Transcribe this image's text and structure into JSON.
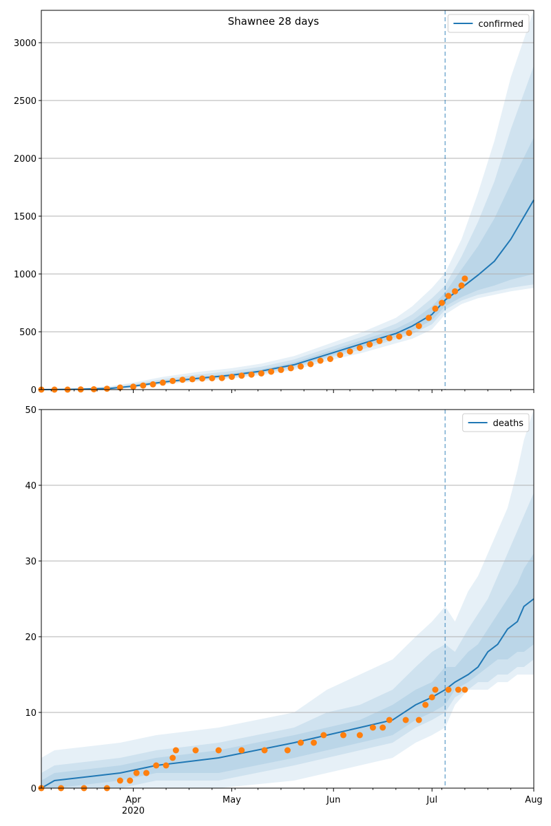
{
  "figure": {
    "title": "Shawnee 28 days"
  },
  "colors": {
    "line": "#1f77b4",
    "band": "#1f77b4",
    "points": "#ff7f0e",
    "vline": "#1f77b4",
    "grid": "#b0b0b0",
    "axis": "#000000"
  },
  "chart_data": [
    {
      "type": "line",
      "legend": [
        "confirmed"
      ],
      "legend_position": "upper right",
      "grid": "horizontal",
      "ylim": [
        0,
        3280
      ],
      "yticks": [
        0,
        500,
        1000,
        1500,
        2000,
        2500,
        3000
      ],
      "xlim": [
        "2020-03-04",
        "2020-08-01"
      ],
      "xtick_dates": [
        "2020-04-01",
        "2020-05-01",
        "2020-06-01",
        "2020-07-01",
        "2020-08-01"
      ],
      "xtick_labels": [
        "",
        "",
        "",
        "",
        ""
      ],
      "xtick_year_label": "",
      "forecast_start": "2020-07-05",
      "model_dates": [
        "2020-03-04",
        "2020-03-15",
        "2020-03-25",
        "2020-04-01",
        "2020-04-10",
        "2020-04-20",
        "2020-05-01",
        "2020-05-10",
        "2020-05-20",
        "2020-06-01",
        "2020-06-10",
        "2020-06-20",
        "2020-06-25",
        "2020-07-01",
        "2020-07-05",
        "2020-07-10",
        "2020-07-15",
        "2020-07-20",
        "2020-07-25",
        "2020-08-01"
      ],
      "model_median": [
        0,
        3,
        10,
        30,
        65,
        95,
        125,
        160,
        215,
        320,
        400,
        485,
        550,
        650,
        775,
        880,
        990,
        1110,
        1300,
        1640
      ],
      "bands": [
        {
          "lower": [
            0,
            0,
            3,
            15,
            45,
            70,
            95,
            125,
            170,
            260,
            320,
            400,
            440,
            520,
            650,
            740,
            790,
            820,
            850,
            880
          ],
          "upper": [
            0,
            12,
            30,
            60,
            110,
            150,
            185,
            225,
            290,
            410,
            500,
            620,
            720,
            880,
            1010,
            1300,
            1700,
            2150,
            2700,
            3280
          ]
        },
        {
          "lower": [
            0,
            0,
            5,
            20,
            52,
            80,
            105,
            138,
            187,
            285,
            350,
            435,
            480,
            565,
            690,
            770,
            820,
            850,
            880,
            910
          ],
          "upper": [
            0,
            8,
            22,
            48,
            90,
            128,
            160,
            198,
            260,
            375,
            460,
            570,
            650,
            790,
            900,
            1150,
            1450,
            1800,
            2250,
            2800
          ]
        },
        {
          "lower": [
            0,
            0,
            7,
            25,
            58,
            86,
            113,
            147,
            200,
            300,
            372,
            455,
            510,
            600,
            720,
            800,
            860,
            900,
            950,
            1000
          ],
          "upper": [
            0,
            5,
            15,
            38,
            75,
            108,
            140,
            175,
            235,
            345,
            430,
            525,
            595,
            720,
            840,
            1040,
            1240,
            1480,
            1780,
            2180
          ]
        }
      ],
      "observed": [
        {
          "date": "2020-03-04",
          "value": 0
        },
        {
          "date": "2020-03-08",
          "value": 0
        },
        {
          "date": "2020-03-12",
          "value": 0
        },
        {
          "date": "2020-03-16",
          "value": 1
        },
        {
          "date": "2020-03-20",
          "value": 3
        },
        {
          "date": "2020-03-24",
          "value": 8
        },
        {
          "date": "2020-03-28",
          "value": 18
        },
        {
          "date": "2020-04-01",
          "value": 25
        },
        {
          "date": "2020-04-04",
          "value": 35
        },
        {
          "date": "2020-04-07",
          "value": 45
        },
        {
          "date": "2020-04-10",
          "value": 60
        },
        {
          "date": "2020-04-13",
          "value": 75
        },
        {
          "date": "2020-04-16",
          "value": 85
        },
        {
          "date": "2020-04-19",
          "value": 90
        },
        {
          "date": "2020-04-22",
          "value": 95
        },
        {
          "date": "2020-04-25",
          "value": 98
        },
        {
          "date": "2020-04-28",
          "value": 100
        },
        {
          "date": "2020-05-01",
          "value": 110
        },
        {
          "date": "2020-05-04",
          "value": 120
        },
        {
          "date": "2020-05-07",
          "value": 130
        },
        {
          "date": "2020-05-10",
          "value": 140
        },
        {
          "date": "2020-05-13",
          "value": 155
        },
        {
          "date": "2020-05-16",
          "value": 170
        },
        {
          "date": "2020-05-19",
          "value": 185
        },
        {
          "date": "2020-05-22",
          "value": 200
        },
        {
          "date": "2020-05-25",
          "value": 220
        },
        {
          "date": "2020-05-28",
          "value": 250
        },
        {
          "date": "2020-05-31",
          "value": 265
        },
        {
          "date": "2020-06-03",
          "value": 300
        },
        {
          "date": "2020-06-06",
          "value": 330
        },
        {
          "date": "2020-06-09",
          "value": 360
        },
        {
          "date": "2020-06-12",
          "value": 390
        },
        {
          "date": "2020-06-15",
          "value": 420
        },
        {
          "date": "2020-06-18",
          "value": 445
        },
        {
          "date": "2020-06-21",
          "value": 460
        },
        {
          "date": "2020-06-24",
          "value": 490
        },
        {
          "date": "2020-06-27",
          "value": 550
        },
        {
          "date": "2020-06-30",
          "value": 620
        },
        {
          "date": "2020-07-02",
          "value": 700
        },
        {
          "date": "2020-07-04",
          "value": 750
        },
        {
          "date": "2020-07-06",
          "value": 810
        },
        {
          "date": "2020-07-08",
          "value": 850
        },
        {
          "date": "2020-07-10",
          "value": 900
        },
        {
          "date": "2020-07-11",
          "value": 960
        }
      ]
    },
    {
      "type": "line",
      "legend": [
        "deaths"
      ],
      "legend_position": "upper right",
      "grid": "horizontal",
      "ylim": [
        0,
        50
      ],
      "yticks": [
        0,
        10,
        20,
        30,
        40,
        50
      ],
      "xlim": [
        "2020-03-04",
        "2020-08-01"
      ],
      "xtick_dates": [
        "2020-04-01",
        "2020-05-01",
        "2020-06-01",
        "2020-07-01",
        "2020-08-01"
      ],
      "xtick_labels": [
        "Apr",
        "May",
        "Jun",
        "Jul",
        "Aug"
      ],
      "xtick_year_label": "2020",
      "forecast_start": "2020-07-05",
      "model_dates": [
        "2020-03-04",
        "2020-03-08",
        "2020-03-28",
        "2020-04-08",
        "2020-04-27",
        "2020-05-20",
        "2020-05-30",
        "2020-06-09",
        "2020-06-19",
        "2020-06-26",
        "2020-07-01",
        "2020-07-05",
        "2020-07-08",
        "2020-07-12",
        "2020-07-15",
        "2020-07-18",
        "2020-07-21",
        "2020-07-24",
        "2020-07-27",
        "2020-07-29",
        "2020-08-01"
      ],
      "model_median": [
        0,
        1,
        2,
        3,
        4,
        6,
        7,
        8,
        9,
        11,
        12,
        13,
        14,
        15,
        16,
        18,
        19,
        21,
        22,
        24,
        25
      ],
      "bands": [
        {
          "lower": [
            0,
            0,
            0,
            0,
            0,
            1,
            2,
            3,
            4,
            6,
            7,
            8,
            11,
            13,
            13,
            13,
            14,
            14,
            15,
            15,
            15
          ],
          "upper": [
            4,
            5,
            6,
            7,
            8,
            10,
            13,
            15,
            17,
            20,
            22,
            24,
            22,
            26,
            28,
            31,
            34,
            37,
            42,
            46,
            50
          ]
        },
        {
          "lower": [
            0,
            0,
            0,
            1,
            1,
            3,
            4,
            5,
            6,
            8,
            9,
            10,
            12,
            13,
            14,
            14,
            15,
            15,
            16,
            16,
            17
          ],
          "upper": [
            2,
            3,
            4,
            5,
            6,
            8,
            10,
            11,
            13,
            16,
            18,
            19,
            18,
            21,
            23,
            25,
            28,
            31,
            34,
            36,
            39
          ]
        },
        {
          "lower": [
            0,
            0,
            1,
            2,
            2,
            4,
            5,
            6,
            7,
            9,
            10,
            11,
            13,
            14,
            15,
            16,
            17,
            17,
            18,
            18,
            19
          ],
          "upper": [
            1,
            2,
            3,
            4,
            5,
            7,
            8,
            9,
            11,
            13,
            14,
            16,
            16,
            18,
            19,
            21,
            23,
            25,
            27,
            29,
            31
          ]
        }
      ],
      "observed": [
        {
          "date": "2020-03-04",
          "value": 0
        },
        {
          "date": "2020-03-10",
          "value": 0
        },
        {
          "date": "2020-03-17",
          "value": 0
        },
        {
          "date": "2020-03-24",
          "value": 0
        },
        {
          "date": "2020-03-28",
          "value": 1
        },
        {
          "date": "2020-03-31",
          "value": 1
        },
        {
          "date": "2020-04-02",
          "value": 2
        },
        {
          "date": "2020-04-05",
          "value": 2
        },
        {
          "date": "2020-04-08",
          "value": 3
        },
        {
          "date": "2020-04-11",
          "value": 3
        },
        {
          "date": "2020-04-13",
          "value": 4
        },
        {
          "date": "2020-04-14",
          "value": 5
        },
        {
          "date": "2020-04-20",
          "value": 5
        },
        {
          "date": "2020-04-27",
          "value": 5
        },
        {
          "date": "2020-05-04",
          "value": 5
        },
        {
          "date": "2020-05-11",
          "value": 5
        },
        {
          "date": "2020-05-18",
          "value": 5
        },
        {
          "date": "2020-05-22",
          "value": 6
        },
        {
          "date": "2020-05-26",
          "value": 6
        },
        {
          "date": "2020-05-29",
          "value": 7
        },
        {
          "date": "2020-06-04",
          "value": 7
        },
        {
          "date": "2020-06-09",
          "value": 7
        },
        {
          "date": "2020-06-13",
          "value": 8
        },
        {
          "date": "2020-06-16",
          "value": 8
        },
        {
          "date": "2020-06-18",
          "value": 9
        },
        {
          "date": "2020-06-23",
          "value": 9
        },
        {
          "date": "2020-06-27",
          "value": 9
        },
        {
          "date": "2020-06-29",
          "value": 11
        },
        {
          "date": "2020-07-01",
          "value": 12
        },
        {
          "date": "2020-07-02",
          "value": 13
        },
        {
          "date": "2020-07-06",
          "value": 13
        },
        {
          "date": "2020-07-09",
          "value": 13
        },
        {
          "date": "2020-07-11",
          "value": 13
        }
      ]
    }
  ]
}
